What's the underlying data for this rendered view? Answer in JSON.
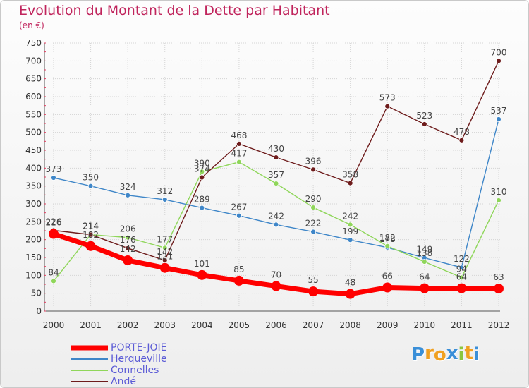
{
  "header": {
    "title": "Evolution du Montant de la Dette par Habitant",
    "subtitle": "(en €)"
  },
  "chart_data": {
    "type": "line",
    "title": "Evolution du Montant de la Dette par Habitant",
    "subtitle": "(en €)",
    "xlabel": "",
    "ylabel": "",
    "x": [
      "2000",
      "2001",
      "2002",
      "2003",
      "2004",
      "2005",
      "2006",
      "2007",
      "2008",
      "2009",
      "2010",
      "2011",
      "2012"
    ],
    "ylim": [
      0,
      750
    ],
    "yticks": [
      0,
      50,
      100,
      150,
      200,
      250,
      300,
      350,
      400,
      450,
      500,
      550,
      600,
      650,
      700,
      750
    ],
    "grid": true,
    "legend_position": "bottom-left",
    "series": [
      {
        "name": "PORTE-JOIE",
        "color": "#ff0000",
        "values": [
          216,
          182,
          142,
          121,
          101,
          85,
          70,
          55,
          48,
          66,
          64,
          64,
          63
        ]
      },
      {
        "name": "Herqueville",
        "color": "#3e86c8",
        "values": [
          373,
          350,
          324,
          312,
          289,
          267,
          242,
          222,
          199,
          178,
          149,
          122,
          537
        ]
      },
      {
        "name": "Connelles",
        "color": "#8fd65a",
        "values": [
          84,
          214,
          206,
          177,
          390,
          417,
          357,
          290,
          242,
          182,
          138,
          94,
          310
        ]
      },
      {
        "name": "Andé",
        "color": "#6e1c1c",
        "values": [
          226,
          214,
          176,
          142,
          374,
          468,
          430,
          396,
          358,
          573,
          523,
          478,
          700
        ]
      }
    ]
  },
  "logo": {
    "letters": [
      "P",
      "r",
      "o",
      "x",
      "i",
      "t",
      "i"
    ],
    "colors": [
      "#3a8fd8",
      "#f0a020",
      "#f0a020",
      "#3a8fd8",
      "#8cc63e",
      "#f0a020",
      "#3a8fd8"
    ]
  }
}
